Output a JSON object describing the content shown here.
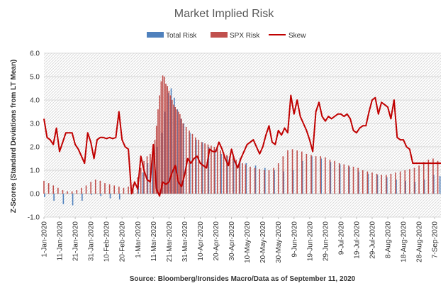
{
  "chart_data": {
    "type": "bar",
    "title": "Market Implied Risk",
    "ylabel": "Z-Scores (Standard Deviations from LT Mean)",
    "source": "Source: Bloomberg/Ironsides Macro/Data as of September 11, 2020",
    "ylim": [
      -1.0,
      6.0
    ],
    "yticks": [
      "6.0",
      "5.0",
      "4.0",
      "3.0",
      "2.0",
      "1.0",
      "0.0",
      "-1.0"
    ],
    "x_labels": [
      "1-Jan-2020",
      "11-Jan-2020",
      "21-Jan-2020",
      "31-Jan-2020",
      "10-Feb-2020",
      "20-Feb-2020",
      "1-Mar-2020",
      "11-Mar-2020",
      "21-Mar-2020",
      "31-Mar-2020",
      "10-Apr-2020",
      "20-Apr-2020",
      "30-Apr-2020",
      "10-May-2020",
      "20-May-2020",
      "30-May-2020",
      "9-Jun-2020",
      "19-Jun-2020",
      "29-Jun-2020",
      "9-Jul-2020",
      "19-Jul-2020",
      "29-Jul-2020",
      "8-Aug-2020",
      "18-Aug-2020",
      "28-Aug-2020",
      "7-Sep-2020"
    ],
    "x_day_range": [
      1,
      255
    ],
    "legend_position": "top",
    "series": [
      {
        "name": "Total Risk",
        "type": "bar",
        "color": "#4f81bd",
        "days": [
          1,
          7,
          13,
          19,
          25,
          31,
          37,
          43,
          49,
          55,
          61,
          64,
          67,
          70,
          73,
          76,
          78,
          80,
          82,
          84,
          86,
          88,
          90,
          94,
          98,
          102,
          106,
          110,
          114,
          118,
          122,
          126,
          130,
          136,
          142,
          148,
          154,
          160,
          166,
          172,
          178,
          184,
          190,
          196,
          202,
          208,
          214,
          220,
          226,
          232,
          238,
          244,
          250,
          254
        ],
        "values": [
          -0.15,
          -0.3,
          -0.45,
          -0.5,
          -0.3,
          -0.05,
          -0.1,
          -0.2,
          -0.25,
          0.0,
          0.5,
          0.9,
          1.3,
          1.5,
          2.0,
          2.6,
          3.5,
          4.3,
          4.5,
          4.1,
          3.6,
          3.2,
          3.0,
          2.6,
          2.3,
          2.2,
          2.0,
          1.9,
          1.7,
          1.6,
          1.6,
          1.5,
          1.3,
          1.2,
          1.1,
          1.0,
          0.95,
          1.0,
          1.4,
          1.6,
          1.5,
          1.35,
          1.25,
          1.15,
          0.95,
          0.85,
          0.8,
          0.7,
          0.6,
          0.55,
          0.5,
          0.6,
          0.8,
          0.75
        ]
      },
      {
        "name": "SPX Risk",
        "type": "bar",
        "color": "#c0504d",
        "days": [
          1,
          4,
          7,
          10,
          13,
          16,
          19,
          22,
          25,
          28,
          31,
          34,
          37,
          40,
          43,
          46,
          49,
          52,
          55,
          58,
          61,
          63,
          65,
          67,
          69,
          71,
          72,
          73,
          74,
          75,
          76,
          77,
          78,
          79,
          80,
          81,
          82,
          83,
          84,
          85,
          86,
          87,
          88,
          89,
          90,
          92,
          94,
          96,
          98,
          100,
          102,
          104,
          106,
          108,
          110,
          112,
          114,
          116,
          118,
          120,
          122,
          124,
          126,
          128,
          130,
          133,
          136,
          139,
          142,
          145,
          148,
          151,
          154,
          157,
          160,
          163,
          166,
          169,
          172,
          175,
          178,
          181,
          184,
          187,
          190,
          193,
          196,
          199,
          202,
          205,
          208,
          211,
          214,
          217,
          220,
          223,
          226,
          229,
          232,
          235,
          238,
          241,
          244,
          247,
          250,
          253
        ],
        "values": [
          0.55,
          0.45,
          0.35,
          0.25,
          0.15,
          0.1,
          0.1,
          0.15,
          0.25,
          0.35,
          0.5,
          0.6,
          0.55,
          0.45,
          0.4,
          0.35,
          0.3,
          0.25,
          0.3,
          0.4,
          0.7,
          1.1,
          1.4,
          1.6,
          1.7,
          1.85,
          2.3,
          2.9,
          3.6,
          4.2,
          4.8,
          5.05,
          5.0,
          4.7,
          4.6,
          4.4,
          4.2,
          4.0,
          3.8,
          3.7,
          3.6,
          3.5,
          3.4,
          3.2,
          3.0,
          2.85,
          2.7,
          2.55,
          2.4,
          2.3,
          2.2,
          2.15,
          2.1,
          2.05,
          2.0,
          1.95,
          1.85,
          1.75,
          1.65,
          1.6,
          1.55,
          1.45,
          1.35,
          1.3,
          1.25,
          1.15,
          1.1,
          1.05,
          1.0,
          1.0,
          1.1,
          1.3,
          1.6,
          1.85,
          1.9,
          1.85,
          1.8,
          1.7,
          1.65,
          1.6,
          1.6,
          1.55,
          1.45,
          1.4,
          1.3,
          1.25,
          1.2,
          1.15,
          1.1,
          1.0,
          0.95,
          0.9,
          0.85,
          0.8,
          0.8,
          0.85,
          0.9,
          0.95,
          1.0,
          1.05,
          1.1,
          1.2,
          1.35,
          1.45,
          1.5,
          1.4
        ]
      },
      {
        "name": "Skew",
        "type": "line",
        "color": "#c00000",
        "days": [
          1,
          3,
          5,
          7,
          9,
          11,
          13,
          15,
          17,
          19,
          21,
          23,
          25,
          27,
          29,
          31,
          33,
          35,
          37,
          39,
          41,
          43,
          45,
          47,
          49,
          51,
          53,
          55,
          57,
          59,
          61,
          63,
          65,
          67,
          69,
          71,
          73,
          75,
          77,
          79,
          81,
          83,
          85,
          87,
          89,
          91,
          93,
          95,
          97,
          99,
          101,
          103,
          105,
          107,
          109,
          111,
          113,
          115,
          117,
          119,
          121,
          123,
          125,
          127,
          129,
          131,
          133,
          135,
          137,
          139,
          141,
          143,
          145,
          147,
          149,
          151,
          153,
          155,
          157,
          159,
          161,
          163,
          165,
          167,
          169,
          171,
          173,
          175,
          177,
          179,
          181,
          183,
          185,
          187,
          189,
          191,
          193,
          195,
          197,
          199,
          201,
          203,
          205,
          207,
          209,
          211,
          213,
          215,
          217,
          219,
          221,
          223,
          225,
          227,
          229,
          231,
          233,
          235,
          237,
          239,
          241,
          243,
          245,
          247,
          249,
          251,
          253,
          255
        ],
        "values": [
          3.2,
          2.4,
          2.3,
          2.1,
          2.8,
          1.8,
          2.2,
          2.6,
          2.6,
          2.6,
          2.1,
          1.9,
          1.6,
          1.3,
          2.6,
          2.2,
          1.5,
          2.3,
          2.4,
          2.4,
          2.35,
          2.4,
          2.35,
          2.4,
          3.5,
          2.3,
          2.0,
          1.9,
          0.0,
          0.5,
          0.2,
          1.6,
          1.0,
          0.6,
          0.5,
          2.1,
          0.2,
          -0.1,
          0.5,
          0.4,
          0.5,
          0.9,
          1.2,
          0.5,
          0.3,
          0.8,
          1.5,
          1.3,
          1.5,
          1.6,
          1.3,
          1.2,
          1.1,
          1.9,
          1.8,
          1.8,
          2.2,
          1.9,
          1.5,
          1.2,
          1.9,
          1.4,
          1.1,
          1.5,
          1.8,
          2.1,
          2.2,
          2.3,
          2.0,
          1.7,
          2.0,
          2.5,
          2.9,
          2.2,
          2.1,
          2.7,
          2.5,
          2.8,
          2.6,
          4.2,
          3.4,
          4.0,
          3.3,
          3.0,
          2.7,
          2.3,
          1.8,
          3.5,
          3.9,
          3.3,
          3.1,
          3.3,
          3.2,
          3.3,
          3.4,
          3.4,
          3.3,
          3.4,
          3.2,
          2.7,
          2.6,
          2.8,
          2.9,
          2.9,
          3.5,
          4.0,
          4.1,
          3.4,
          3.9,
          3.8,
          3.7,
          3.2,
          4.0,
          2.4,
          2.3,
          2.3,
          2.0,
          1.9,
          1.3,
          1.3,
          1.3,
          1.3,
          1.3,
          1.3,
          1.3,
          1.3,
          1.3,
          1.3
        ]
      }
    ]
  }
}
